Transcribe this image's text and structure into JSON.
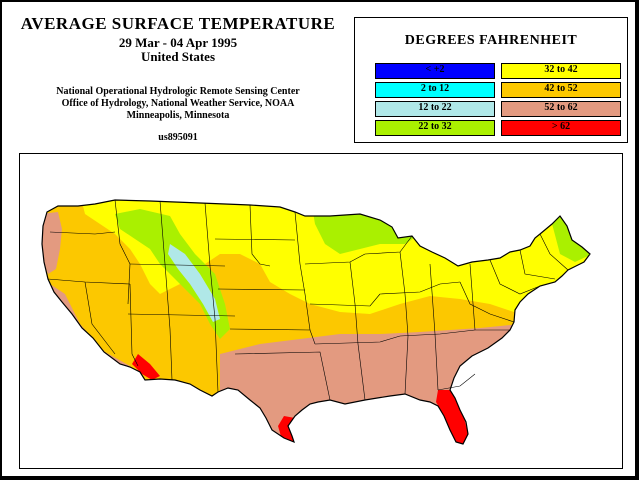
{
  "header": {
    "title": "AVERAGE SURFACE TEMPERATURE",
    "dates": "29 Mar - 04 Apr 1995",
    "region": "United States",
    "org_line1": "National Operational Hydrologic Remote Sensing Center",
    "org_line2": "Office of Hydrology, National Weather Service, NOAA",
    "org_line3": "Minneapolis, Minnesota",
    "product_id": "us895091"
  },
  "legend": {
    "title": "DEGREES FAHRENHEIT",
    "items": [
      {
        "label": "< +2",
        "color": "#0000ff"
      },
      {
        "label": "2 to 12",
        "color": "#00ffff"
      },
      {
        "label": "12 to 22",
        "color": "#b0e8e8"
      },
      {
        "label": "22 to 32",
        "color": "#aaf000"
      },
      {
        "label": "32 to 42",
        "color": "#ffff00"
      },
      {
        "label": "42 to 52",
        "color": "#fcc800"
      },
      {
        "label": "52 to 62",
        "color": "#e39a80"
      },
      {
        "label": "> 62",
        "color": "#ff0000"
      }
    ]
  },
  "map": {
    "colors": {
      "lt_22": "#b0e8e8",
      "22_32": "#aaf000",
      "32_42": "#ffff00",
      "42_52": "#fcc800",
      "52_62": "#e39a80",
      "gt_62": "#ff0000",
      "boundary": "#000000"
    }
  }
}
